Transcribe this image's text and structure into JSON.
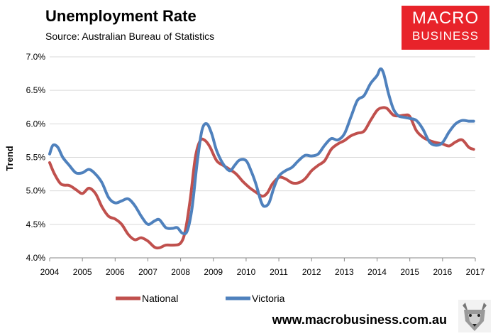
{
  "title": "Unemployment Rate",
  "subtitle": "Source: Australian Bureau of Statistics",
  "logo": {
    "line1": "MACRO",
    "line2": "BUSINESS",
    "color": "#e8232a"
  },
  "footer_url": "www.macrobusiness.com.au",
  "mascot_icon": "wolf-icon",
  "chart_data": {
    "type": "line",
    "ylabel": "Trend",
    "xlabel": "",
    "ylim": [
      4.0,
      7.0
    ],
    "xlim": [
      2004,
      2017
    ],
    "y_ticks": [
      "4.0%",
      "4.5%",
      "5.0%",
      "5.5%",
      "6.0%",
      "6.5%",
      "7.0%"
    ],
    "y_tick_values": [
      4.0,
      4.5,
      5.0,
      5.5,
      6.0,
      6.5,
      7.0
    ],
    "x_ticks": [
      "2004",
      "2005",
      "2006",
      "2007",
      "2008",
      "2009",
      "2010",
      "2011",
      "2012",
      "2013",
      "2014",
      "2015",
      "2016",
      "2017"
    ],
    "x_tick_values": [
      2004,
      2005,
      2006,
      2007,
      2008,
      2009,
      2010,
      2011,
      2012,
      2013,
      2014,
      2015,
      2016,
      2017
    ],
    "grid": true,
    "legend_position": "bottom",
    "series": [
      {
        "name": "National",
        "color": "#c0504d",
        "x": [
          2004.0,
          2004.15,
          2004.35,
          2004.6,
          2004.8,
          2005.0,
          2005.2,
          2005.4,
          2005.6,
          2005.8,
          2006.0,
          2006.2,
          2006.4,
          2006.6,
          2006.8,
          2007.0,
          2007.2,
          2007.35,
          2007.55,
          2007.75,
          2008.0,
          2008.15,
          2008.3,
          2008.45,
          2008.6,
          2008.75,
          2008.9,
          2009.1,
          2009.3,
          2009.5,
          2009.7,
          2009.9,
          2010.1,
          2010.3,
          2010.5,
          2010.65,
          2010.8,
          2011.0,
          2011.2,
          2011.4,
          2011.6,
          2011.8,
          2012.0,
          2012.2,
          2012.4,
          2012.6,
          2012.8,
          2013.0,
          2013.2,
          2013.4,
          2013.6,
          2013.8,
          2014.0,
          2014.15,
          2014.3,
          2014.5,
          2014.7,
          2014.85,
          2015.0,
          2015.2,
          2015.4,
          2015.6,
          2015.8,
          2016.0,
          2016.2,
          2016.4,
          2016.6,
          2016.8,
          2016.95
        ],
        "values": [
          5.42,
          5.25,
          5.1,
          5.08,
          5.02,
          4.96,
          5.04,
          4.96,
          4.76,
          4.62,
          4.58,
          4.5,
          4.35,
          4.27,
          4.3,
          4.25,
          4.16,
          4.15,
          4.19,
          4.19,
          4.22,
          4.42,
          4.9,
          5.5,
          5.75,
          5.75,
          5.65,
          5.45,
          5.38,
          5.32,
          5.25,
          5.14,
          5.05,
          4.98,
          4.92,
          4.97,
          5.1,
          5.2,
          5.18,
          5.12,
          5.12,
          5.18,
          5.3,
          5.38,
          5.45,
          5.62,
          5.7,
          5.75,
          5.82,
          5.86,
          5.89,
          6.05,
          6.2,
          6.24,
          6.23,
          6.13,
          6.12,
          6.13,
          6.11,
          5.9,
          5.8,
          5.75,
          5.72,
          5.7,
          5.67,
          5.73,
          5.76,
          5.65,
          5.62
        ]
      },
      {
        "name": "Victoria",
        "color": "#4f81bd",
        "x": [
          2004.0,
          2004.1,
          2004.25,
          2004.4,
          2004.6,
          2004.8,
          2005.0,
          2005.2,
          2005.4,
          2005.6,
          2005.8,
          2006.0,
          2006.2,
          2006.4,
          2006.6,
          2006.8,
          2007.0,
          2007.2,
          2007.35,
          2007.55,
          2007.75,
          2007.9,
          2008.05,
          2008.2,
          2008.35,
          2008.5,
          2008.65,
          2008.8,
          2008.95,
          2009.1,
          2009.3,
          2009.5,
          2009.65,
          2009.8,
          2010.0,
          2010.15,
          2010.3,
          2010.45,
          2010.55,
          2010.7,
          2010.85,
          2011.0,
          2011.2,
          2011.4,
          2011.6,
          2011.8,
          2012.0,
          2012.2,
          2012.4,
          2012.6,
          2012.8,
          2013.0,
          2013.2,
          2013.4,
          2013.6,
          2013.8,
          2014.0,
          2014.1,
          2014.2,
          2014.35,
          2014.5,
          2014.65,
          2014.8,
          2015.0,
          2015.2,
          2015.4,
          2015.6,
          2015.8,
          2016.0,
          2016.2,
          2016.4,
          2016.6,
          2016.8,
          2016.95
        ],
        "values": [
          5.55,
          5.68,
          5.65,
          5.5,
          5.38,
          5.27,
          5.27,
          5.32,
          5.25,
          5.12,
          4.9,
          4.82,
          4.85,
          4.88,
          4.78,
          4.62,
          4.5,
          4.55,
          4.57,
          4.45,
          4.44,
          4.45,
          4.37,
          4.4,
          4.75,
          5.4,
          5.9,
          6.0,
          5.85,
          5.6,
          5.4,
          5.3,
          5.38,
          5.46,
          5.45,
          5.3,
          5.1,
          4.85,
          4.77,
          4.82,
          5.05,
          5.22,
          5.3,
          5.35,
          5.45,
          5.53,
          5.52,
          5.55,
          5.68,
          5.78,
          5.76,
          5.85,
          6.1,
          6.35,
          6.42,
          6.6,
          6.72,
          6.82,
          6.75,
          6.45,
          6.22,
          6.12,
          6.1,
          6.08,
          6.05,
          5.92,
          5.73,
          5.68,
          5.72,
          5.88,
          6.0,
          6.05,
          6.04,
          6.04
        ]
      }
    ]
  }
}
